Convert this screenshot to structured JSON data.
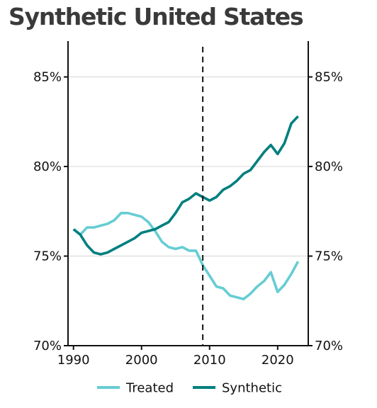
{
  "chart_data": {
    "type": "line",
    "title": "Synthetic United States",
    "xlabel": "",
    "ylabel": "",
    "xlim": [
      1989.2,
      2024.5
    ],
    "ylim": [
      70,
      87
    ],
    "x_ticks": [
      1990,
      2000,
      2010,
      2020
    ],
    "x_tick_labels": [
      "1990",
      "2000",
      "2010",
      "2020"
    ],
    "y_ticks": [
      70,
      75,
      80,
      85
    ],
    "y_tick_labels": [
      "70%",
      "75%",
      "80%",
      "85%"
    ],
    "y_axis_both_sides": true,
    "grid": "horizontal",
    "intervention_line": {
      "x": 2009,
      "style": "dashed"
    },
    "legend_position": "bottom",
    "x": [
      1990,
      1991,
      1992,
      1993,
      1994,
      1995,
      1996,
      1997,
      1998,
      1999,
      2000,
      2001,
      2002,
      2003,
      2004,
      2005,
      2006,
      2007,
      2008,
      2009,
      2010,
      2011,
      2012,
      2013,
      2014,
      2015,
      2016,
      2017,
      2018,
      2019,
      2020,
      2021,
      2022,
      2023
    ],
    "series": [
      {
        "name": "Treated",
        "color": "#66cdd3",
        "values": [
          76.5,
          76.2,
          76.6,
          76.6,
          76.7,
          76.8,
          77.0,
          77.4,
          77.4,
          77.3,
          77.2,
          76.9,
          76.4,
          75.8,
          75.5,
          75.4,
          75.5,
          75.3,
          75.3,
          74.5,
          73.9,
          73.3,
          73.2,
          72.8,
          72.7,
          72.6,
          72.9,
          73.3,
          73.6,
          74.1,
          73.0,
          73.4,
          74.0,
          74.7
        ]
      },
      {
        "name": "Synthetic",
        "color": "#007f7f",
        "values": [
          76.5,
          76.2,
          75.6,
          75.2,
          75.1,
          75.2,
          75.4,
          75.6,
          75.8,
          76.0,
          76.3,
          76.4,
          76.5,
          76.7,
          76.9,
          77.4,
          78.0,
          78.2,
          78.5,
          78.3,
          78.1,
          78.3,
          78.7,
          78.9,
          79.2,
          79.6,
          79.8,
          80.3,
          80.8,
          81.2,
          80.7,
          81.3,
          82.4,
          82.8
        ]
      }
    ]
  }
}
